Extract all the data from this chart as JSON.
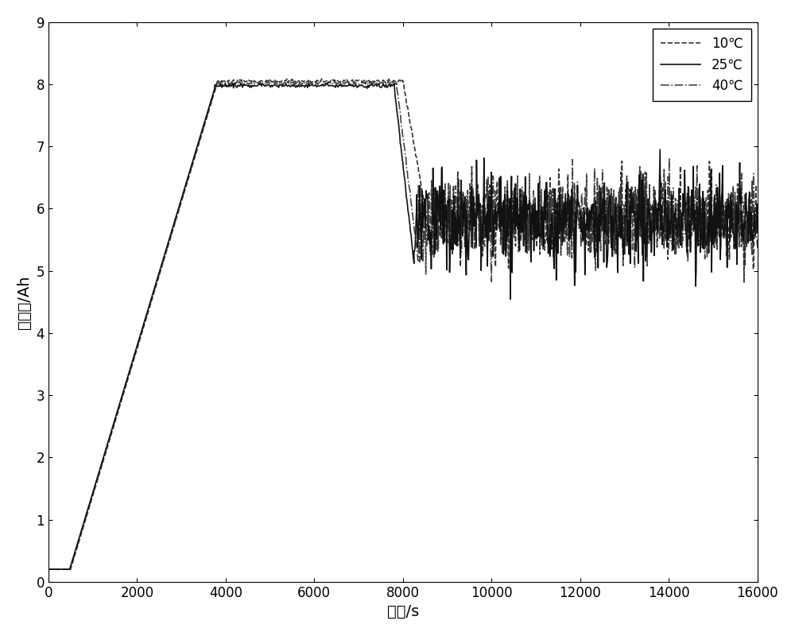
{
  "title": "",
  "xlabel": "时间/s",
  "ylabel": "电容量/Ah",
  "xlim": [
    0,
    16000
  ],
  "ylim": [
    0,
    9
  ],
  "xticks": [
    0,
    2000,
    4000,
    6000,
    8000,
    10000,
    12000,
    14000,
    16000
  ],
  "yticks": [
    0,
    1,
    2,
    3,
    4,
    5,
    6,
    7,
    8,
    9
  ],
  "legend_labels": [
    "10℃",
    "25℃",
    "40℃"
  ],
  "background_color": "#ffffff",
  "figsize": [
    10,
    8
  ],
  "dpi": 100
}
